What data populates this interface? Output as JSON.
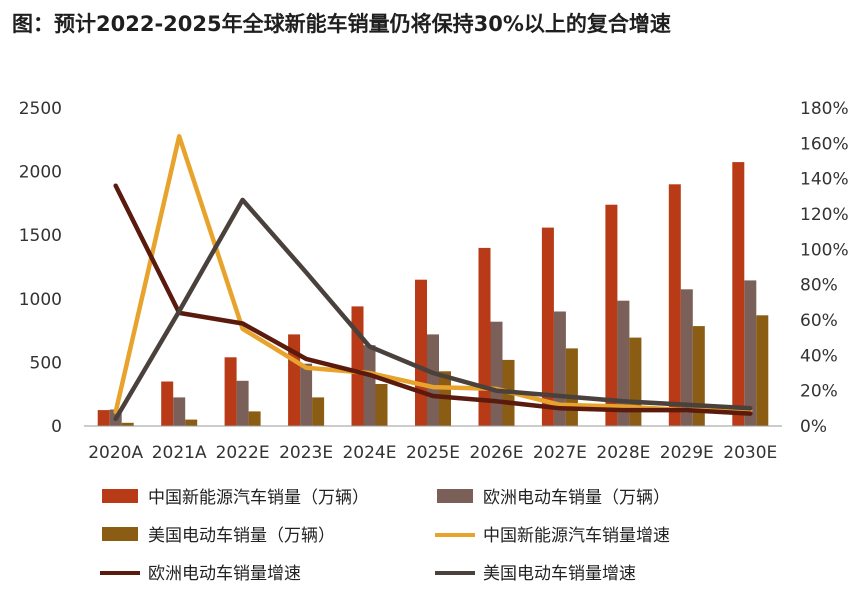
{
  "title": "图：预计2022-2025年全球新能车销量仍将保持30%以上的复合增速",
  "chart_data": {
    "type": "bar",
    "categories": [
      "2020A",
      "2021A",
      "2022E",
      "2023E",
      "2024E",
      "2025E",
      "2026E",
      "2027E",
      "2028E",
      "2029E",
      "2030E"
    ],
    "y_left": {
      "min": 0,
      "max": 2500,
      "ticks": [
        0,
        500,
        1000,
        1500,
        2000,
        2500
      ]
    },
    "y_right": {
      "min": 0,
      "max": 180,
      "ticks": [
        "0%",
        "20%",
        "40%",
        "60%",
        "80%",
        "100%",
        "120%",
        "140%",
        "160%",
        "180%"
      ]
    },
    "grid": false,
    "bar_series": [
      {
        "name": "中国新能源汽车销量（万辆）",
        "color": "#b83a16",
        "values": [
          125,
          350,
          540,
          720,
          940,
          1150,
          1400,
          1560,
          1740,
          1900,
          2075
        ]
      },
      {
        "name": "欧洲电动车销量（万辆）",
        "color": "#7a6058",
        "values": [
          130,
          225,
          355,
          490,
          635,
          720,
          820,
          900,
          985,
          1075,
          1145
        ]
      },
      {
        "name": "美国电动车销量（万辆）",
        "color": "#8a5c14",
        "values": [
          25,
          50,
          115,
          225,
          330,
          430,
          520,
          610,
          695,
          785,
          870
        ]
      }
    ],
    "line_series": [
      {
        "name": "中国新能源汽车销量增速",
        "color": "#e8a32d",
        "values": [
          8,
          164,
          55,
          33,
          30,
          22,
          21,
          12,
          11,
          9,
          9
        ]
      },
      {
        "name": "欧洲电动车销量增速",
        "color": "#5a1a0e",
        "values": [
          136,
          64,
          58,
          38,
          29,
          17,
          14,
          10,
          9,
          9,
          7
        ]
      },
      {
        "name": "美国电动车销量增速",
        "color": "#4a403c",
        "values": [
          4,
          65,
          128,
          87,
          45,
          30,
          20,
          17,
          14,
          12,
          10
        ]
      }
    ],
    "legend": [
      {
        "label": "中国新能源汽车销量（万辆）",
        "kind": "bar",
        "color": "#b83a16"
      },
      {
        "label": "欧洲电动车销量（万辆）",
        "kind": "bar",
        "color": "#7a6058"
      },
      {
        "label": "美国电动车销量（万辆）",
        "kind": "bar",
        "color": "#8a5c14"
      },
      {
        "label": "中国新能源汽车销量增速",
        "kind": "line",
        "color": "#e8a32d"
      },
      {
        "label": "欧洲电动车销量增速",
        "kind": "line",
        "color": "#5a1a0e"
      },
      {
        "label": "美国电动车销量增速",
        "kind": "line",
        "color": "#4a403c"
      }
    ],
    "legend_position": "bottom"
  }
}
